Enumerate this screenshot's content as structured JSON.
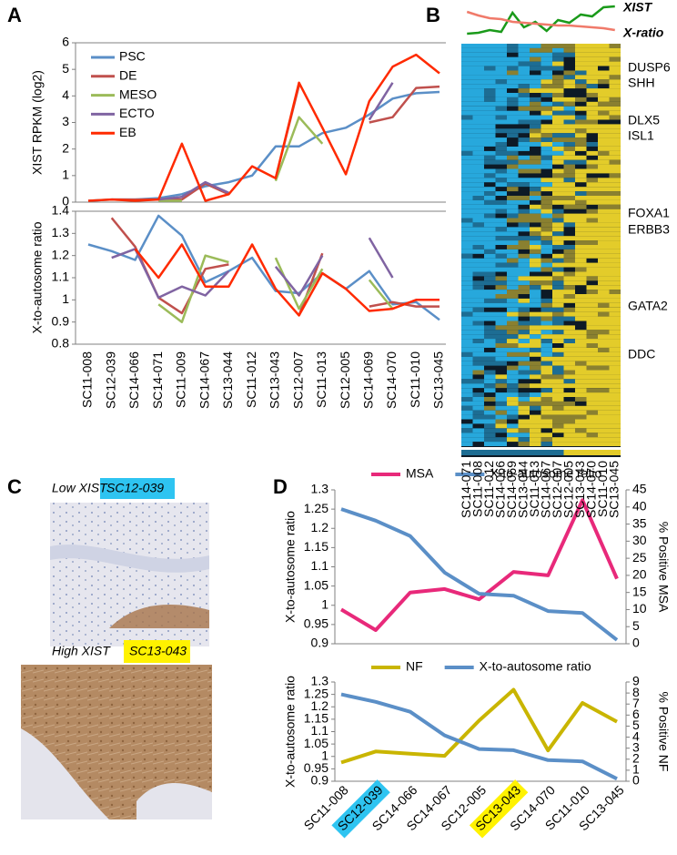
{
  "panel_labels": [
    "A",
    "B",
    "C",
    "D"
  ],
  "chart_data": [
    {
      "type": "line",
      "ylabel": "XIST RPKM (log2)",
      "ylim": [
        0,
        6
      ],
      "yticks": [
        0,
        1,
        2,
        3,
        4,
        5,
        6
      ],
      "series": [
        {
          "name": "PSC",
          "color": "#5b8fc7",
          "values": [
            0.05,
            0.1,
            0.1,
            0.15,
            0.3,
            0.6,
            0.75,
            1.0,
            2.1,
            2.1,
            2.6,
            2.8,
            3.3,
            3.9,
            4.1,
            4.15
          ]
        },
        {
          "name": "DE",
          "color": "#c0504d",
          "values": [
            null,
            0.1,
            0.1,
            0.1,
            0.1,
            0.7,
            0.3,
            null,
            0.9,
            4.4,
            null,
            null,
            3.0,
            3.2,
            4.3,
            4.35
          ]
        },
        {
          "name": "MESO",
          "color": "#9bbb59",
          "values": [
            null,
            null,
            null,
            0.05,
            0.05,
            null,
            null,
            null,
            0.8,
            3.2,
            2.2,
            null,
            null,
            3.9,
            null,
            null
          ]
        },
        {
          "name": "ECTO",
          "color": "#8064a2",
          "values": [
            null,
            null,
            null,
            0.1,
            0.2,
            0.75,
            0.35,
            null,
            null,
            4.0,
            null,
            null,
            3.1,
            4.5,
            null,
            null
          ]
        },
        {
          "name": "EB",
          "color": "#ff2a00",
          "values": [
            0.05,
            0.1,
            0.05,
            0.1,
            2.2,
            0.05,
            0.3,
            1.35,
            0.9,
            4.5,
            2.8,
            1.05,
            3.8,
            5.1,
            5.55,
            4.85
          ]
        }
      ]
    },
    {
      "type": "line",
      "ylabel": "X-to-autosome ratio",
      "ylim": [
        0.8,
        1.4
      ],
      "yticks": [
        0.8,
        0.9,
        1,
        1.1,
        1.2,
        1.3,
        1.4
      ],
      "categories": [
        "SC11-008",
        "SC12-039",
        "SC14-066",
        "SC14-071",
        "SC11-009",
        "SC14-067",
        "SC13-044",
        "SC11-012",
        "SC13-043",
        "SC12-007",
        "SC11-013",
        "SC12-005",
        "SC14-069",
        "SC14-070",
        "SC11-010",
        "SC13-045"
      ],
      "series": [
        {
          "color": "#5b8fc7",
          "values": [
            1.25,
            1.22,
            1.18,
            1.38,
            1.29,
            1.08,
            1.13,
            1.19,
            1.04,
            1.03,
            1.12,
            1.05,
            1.13,
            0.98,
            0.99,
            0.91
          ]
        },
        {
          "color": "#c0504d",
          "values": [
            null,
            1.37,
            1.24,
            1.01,
            0.94,
            1.14,
            1.16,
            null,
            null,
            0.93,
            1.21,
            null,
            0.97,
            0.99,
            0.97,
            0.97
          ]
        },
        {
          "color": "#9bbb59",
          "values": [
            null,
            null,
            null,
            0.98,
            0.9,
            1.2,
            1.17,
            null,
            1.19,
            0.96,
            1.14,
            null,
            1.09,
            0.96,
            null,
            null
          ]
        },
        {
          "color": "#8064a2",
          "values": [
            null,
            1.19,
            1.23,
            1.01,
            1.06,
            1.02,
            1.13,
            null,
            1.15,
            1.02,
            1.2,
            null,
            1.28,
            1.1,
            null,
            null
          ]
        },
        {
          "color": "#ff2a00",
          "values": [
            null,
            null,
            1.23,
            1.1,
            1.25,
            1.06,
            1.06,
            1.25,
            1.05,
            0.93,
            1.12,
            1.05,
            0.95,
            0.96,
            1.0,
            1.0
          ]
        }
      ]
    },
    {
      "type": "heatmap",
      "columns": [
        "SC14-071",
        "SC11-008",
        "SC11-012",
        "SC14-066",
        "SC14-069",
        "SC13-044",
        "SC11-013",
        "SC14-067",
        "SC12-007",
        "SC12-005",
        "SC13-043",
        "SC14-070",
        "SC11-010",
        "SC13-045"
      ],
      "tracks": [
        {
          "name": "XIST",
          "color": "#1a9a1a"
        },
        {
          "name": "X-ratio",
          "color": "#f07a6a"
        }
      ],
      "row_labels": [
        "DUSP6",
        "SHH",
        "DLX5",
        "ISL1",
        "FOXA1",
        "ERBB3",
        "GATA2",
        "DDC"
      ]
    },
    {
      "type": "line",
      "ylabel": "X-to-autosome ratio",
      "y2label": "% Positive MSA",
      "ylim": [
        0.9,
        1.3
      ],
      "yticks": [
        0.9,
        0.95,
        1,
        1.05,
        1.1,
        1.15,
        1.2,
        1.25,
        1.3
      ],
      "y2lim": [
        0,
        45
      ],
      "y2ticks": [
        0,
        5,
        10,
        15,
        20,
        25,
        30,
        35,
        40,
        45
      ],
      "series": [
        {
          "name": "MSA",
          "color": "#e8297a",
          "axis": "y2",
          "values": [
            10,
            4,
            15,
            16,
            13,
            21,
            20,
            42,
            19
          ]
        },
        {
          "name": "X-to-autosome ratio",
          "color": "#5b8fc7",
          "values": [
            1.25,
            1.22,
            1.18,
            1.085,
            1.03,
            1.025,
            0.985,
            0.98,
            0.91
          ]
        }
      ]
    },
    {
      "type": "line",
      "ylabel": "X-to-autosome ratio",
      "y2label": "% Positive NF",
      "ylim": [
        0.9,
        1.3
      ],
      "yticks": [
        0.9,
        0.95,
        1,
        1.05,
        1.1,
        1.15,
        1.2,
        1.25,
        1.3
      ],
      "y2lim": [
        0,
        9
      ],
      "y2ticks": [
        0,
        1,
        2,
        3,
        4,
        5,
        6,
        7,
        8,
        9
      ],
      "categories": [
        "SC11-008",
        "SC12-039",
        "SC14-066",
        "SC14-067",
        "SC12-005",
        "SC13-043",
        "SC14-070",
        "SC11-010",
        "SC13-045"
      ],
      "category_highlights": [
        null,
        "#2ec4f1",
        null,
        null,
        null,
        "#fff200",
        null,
        null,
        null
      ],
      "series": [
        {
          "name": "NF",
          "color": "#c9b500",
          "axis": "y2",
          "values": [
            1.7,
            2.7,
            2.5,
            2.3,
            5.5,
            8.3,
            2.8,
            7.1,
            5.4
          ]
        },
        {
          "name": "X-to-autosome ratio",
          "color": "#5b8fc7",
          "values": [
            1.25,
            1.22,
            1.18,
            1.085,
            1.03,
            1.025,
            0.985,
            0.98,
            0.91
          ]
        }
      ]
    }
  ],
  "images": [
    {
      "caption": "Low XIST",
      "sample": "SC12-039",
      "sample_color": "#2ec4f1"
    },
    {
      "caption": "High XIST",
      "sample": "SC13-043",
      "sample_color": "#fff200"
    }
  ]
}
